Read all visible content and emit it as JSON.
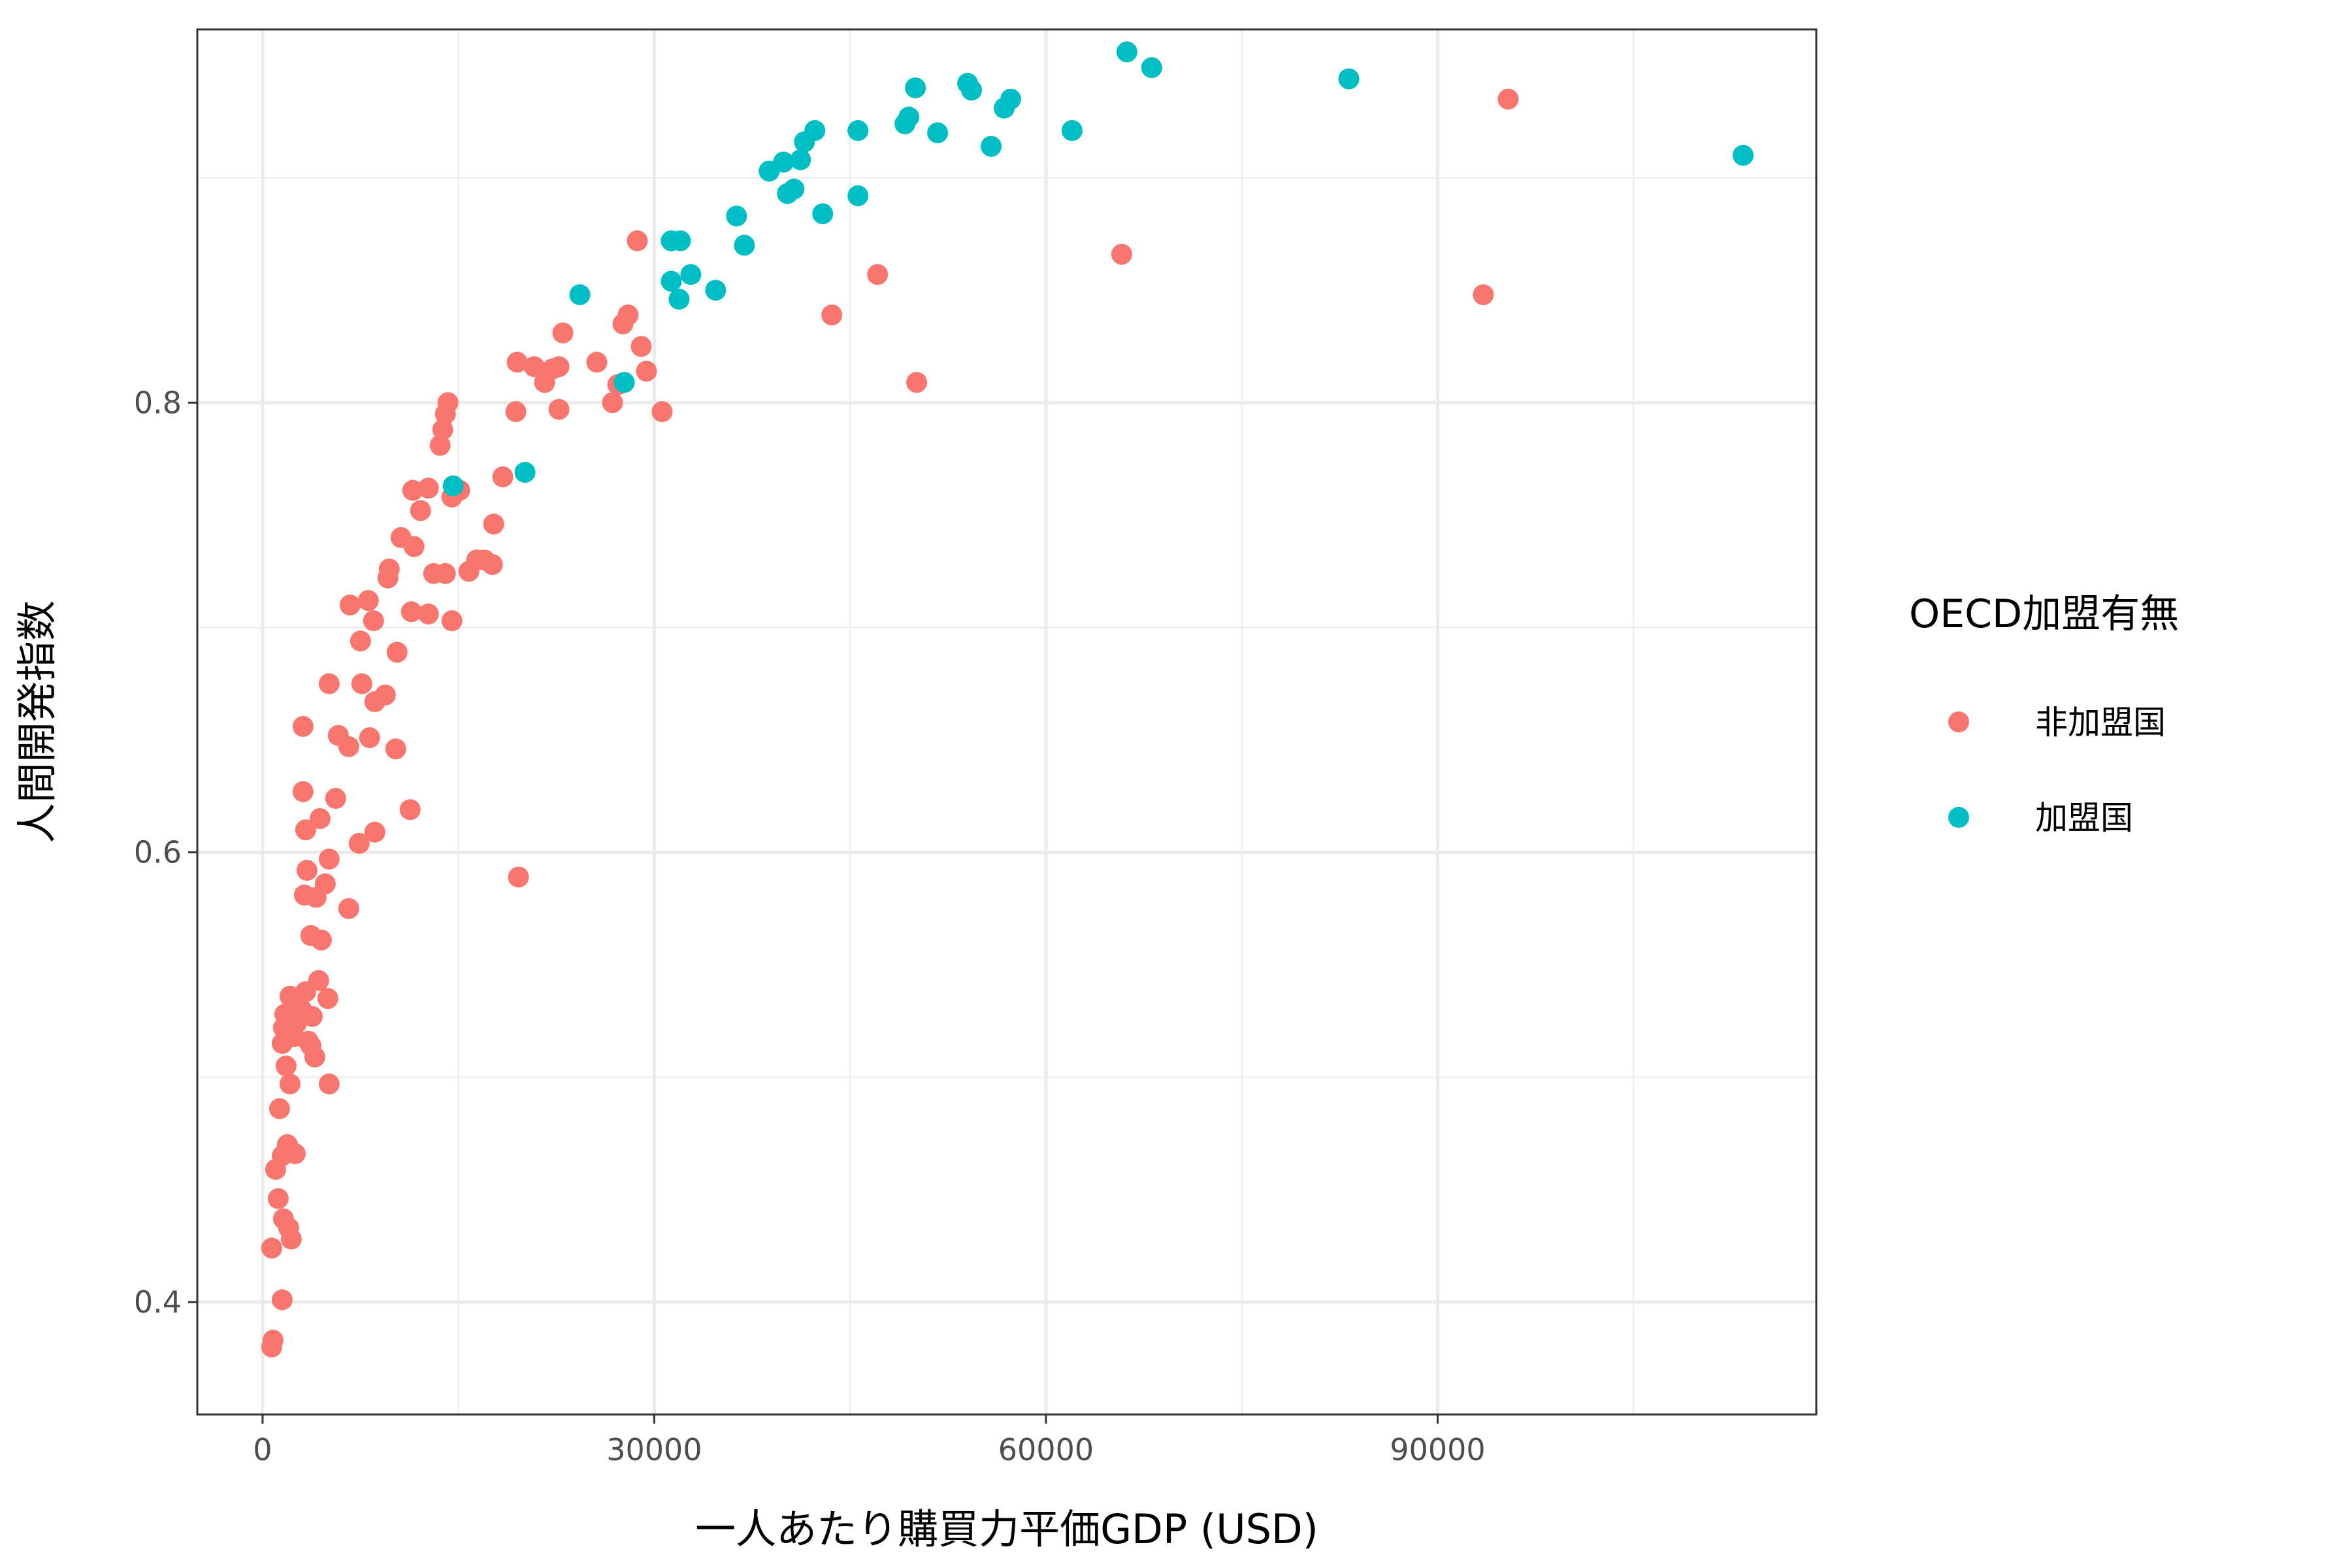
{
  "chart_data": {
    "type": "scatter",
    "xlabel": "一人あたり購買力平価GDP (USD)",
    "ylabel": "人間開発指数",
    "xlim": [
      -5000,
      119000
    ],
    "ylim": [
      0.35,
      0.966
    ],
    "x_ticks": [
      0,
      30000,
      60000,
      90000
    ],
    "x_tick_labels": [
      "0",
      "30000",
      "60000",
      "90000"
    ],
    "y_ticks": [
      0.4,
      0.6,
      0.8
    ],
    "y_tick_labels": [
      "0.4",
      "0.6",
      "0.8"
    ],
    "x_minor_ticks": [
      15000,
      45000,
      75000,
      105000
    ],
    "y_minor_ticks": [
      0.5,
      0.7,
      0.9
    ],
    "grid": true,
    "legend": {
      "title": "OECD加盟有無",
      "position": "right",
      "entries": [
        {
          "label": "非加盟国",
          "color": "#F8766D"
        },
        {
          "label": "加盟国",
          "color": "#00BFC4"
        }
      ]
    },
    "series": [
      {
        "name": "非加盟国",
        "color": "#F8766D",
        "points": [
          [
            700,
            0.38
          ],
          [
            800,
            0.383
          ],
          [
            700,
            0.424
          ],
          [
            1500,
            0.401
          ],
          [
            1200,
            0.446
          ],
          [
            1000,
            0.459
          ],
          [
            1600,
            0.437
          ],
          [
            2000,
            0.433
          ],
          [
            2200,
            0.428
          ],
          [
            1500,
            0.465
          ],
          [
            1900,
            0.47
          ],
          [
            2500,
            0.466
          ],
          [
            1300,
            0.486
          ],
          [
            1800,
            0.505
          ],
          [
            2100,
            0.497
          ],
          [
            1500,
            0.515
          ],
          [
            1600,
            0.522
          ],
          [
            1700,
            0.528
          ],
          [
            2100,
            0.536
          ],
          [
            2400,
            0.518
          ],
          [
            2600,
            0.524
          ],
          [
            2800,
            0.531
          ],
          [
            3000,
            0.53
          ],
          [
            3300,
            0.538
          ],
          [
            3500,
            0.516
          ],
          [
            3800,
            0.527
          ],
          [
            3700,
            0.514
          ],
          [
            4000,
            0.509
          ],
          [
            4300,
            0.543
          ],
          [
            3200,
            0.581
          ],
          [
            3400,
            0.592
          ],
          [
            3700,
            0.563
          ],
          [
            4100,
            0.58
          ],
          [
            4500,
            0.561
          ],
          [
            4800,
            0.586
          ],
          [
            5000,
            0.535
          ],
          [
            5100,
            0.497
          ],
          [
            3300,
            0.61
          ],
          [
            3100,
            0.627
          ],
          [
            4400,
            0.615
          ],
          [
            5100,
            0.597
          ],
          [
            5600,
            0.624
          ],
          [
            6600,
            0.575
          ],
          [
            7400,
            0.604
          ],
          [
            8600,
            0.609
          ],
          [
            11300,
            0.619
          ],
          [
            3100,
            0.656
          ],
          [
            5800,
            0.652
          ],
          [
            6600,
            0.647
          ],
          [
            7600,
            0.675
          ],
          [
            8200,
            0.651
          ],
          [
            8600,
            0.667
          ],
          [
            9400,
            0.67
          ],
          [
            10200,
            0.646
          ],
          [
            5100,
            0.675
          ],
          [
            6700,
            0.71
          ],
          [
            7500,
            0.694
          ],
          [
            8100,
            0.712
          ],
          [
            8500,
            0.703
          ],
          [
            9600,
            0.722
          ],
          [
            9700,
            0.726
          ],
          [
            10300,
            0.689
          ],
          [
            11400,
            0.707
          ],
          [
            12700,
            0.706
          ],
          [
            14500,
            0.703
          ],
          [
            10600,
            0.74
          ],
          [
            11500,
            0.761
          ],
          [
            11600,
            0.736
          ],
          [
            12100,
            0.752
          ],
          [
            12700,
            0.762
          ],
          [
            13100,
            0.724
          ],
          [
            14000,
            0.724
          ],
          [
            14500,
            0.758
          ],
          [
            15100,
            0.761
          ],
          [
            15800,
            0.725
          ],
          [
            16400,
            0.73
          ],
          [
            17000,
            0.73
          ],
          [
            17600,
            0.728
          ],
          [
            17700,
            0.746
          ],
          [
            18400,
            0.767
          ],
          [
            13600,
            0.781
          ],
          [
            13800,
            0.788
          ],
          [
            14000,
            0.795
          ],
          [
            14200,
            0.8
          ],
          [
            19400,
            0.796
          ],
          [
            19500,
            0.818
          ],
          [
            20800,
            0.816
          ],
          [
            21600,
            0.809
          ],
          [
            22200,
            0.815
          ],
          [
            22700,
            0.797
          ],
          [
            23000,
            0.831
          ],
          [
            22700,
            0.816
          ],
          [
            25600,
            0.818
          ],
          [
            26800,
            0.8
          ],
          [
            27200,
            0.808
          ],
          [
            27600,
            0.835
          ],
          [
            28000,
            0.839
          ],
          [
            29000,
            0.825
          ],
          [
            29400,
            0.814
          ],
          [
            30600,
            0.796
          ],
          [
            28700,
            0.872
          ],
          [
            19600,
            0.589
          ],
          [
            43600,
            0.839
          ],
          [
            47100,
            0.857
          ],
          [
            50100,
            0.809
          ],
          [
            65800,
            0.866
          ],
          [
            93500,
            0.848
          ],
          [
            95400,
            0.935
          ]
        ]
      },
      {
        "name": "加盟国",
        "color": "#00BFC4",
        "points": [
          [
            14600,
            0.763
          ],
          [
            20100,
            0.769
          ],
          [
            27700,
            0.809
          ],
          [
            24300,
            0.848
          ],
          [
            31300,
            0.872
          ],
          [
            32000,
            0.872
          ],
          [
            31300,
            0.854
          ],
          [
            32800,
            0.857
          ],
          [
            31900,
            0.846
          ],
          [
            34700,
            0.85
          ],
          [
            36300,
            0.883
          ],
          [
            36900,
            0.87
          ],
          [
            38800,
            0.903
          ],
          [
            39900,
            0.907
          ],
          [
            40200,
            0.893
          ],
          [
            40700,
            0.895
          ],
          [
            41200,
            0.908
          ],
          [
            41500,
            0.916
          ],
          [
            42300,
            0.921
          ],
          [
            42900,
            0.884
          ],
          [
            45600,
            0.921
          ],
          [
            45600,
            0.892
          ],
          [
            49200,
            0.924
          ],
          [
            49500,
            0.927
          ],
          [
            50000,
            0.94
          ],
          [
            51700,
            0.92
          ],
          [
            54000,
            0.942
          ],
          [
            54300,
            0.939
          ],
          [
            55800,
            0.914
          ],
          [
            56800,
            0.931
          ],
          [
            57300,
            0.935
          ],
          [
            62000,
            0.921
          ],
          [
            66200,
            0.956
          ],
          [
            68100,
            0.949
          ],
          [
            83200,
            0.944
          ],
          [
            113400,
            0.91
          ]
        ]
      }
    ]
  }
}
